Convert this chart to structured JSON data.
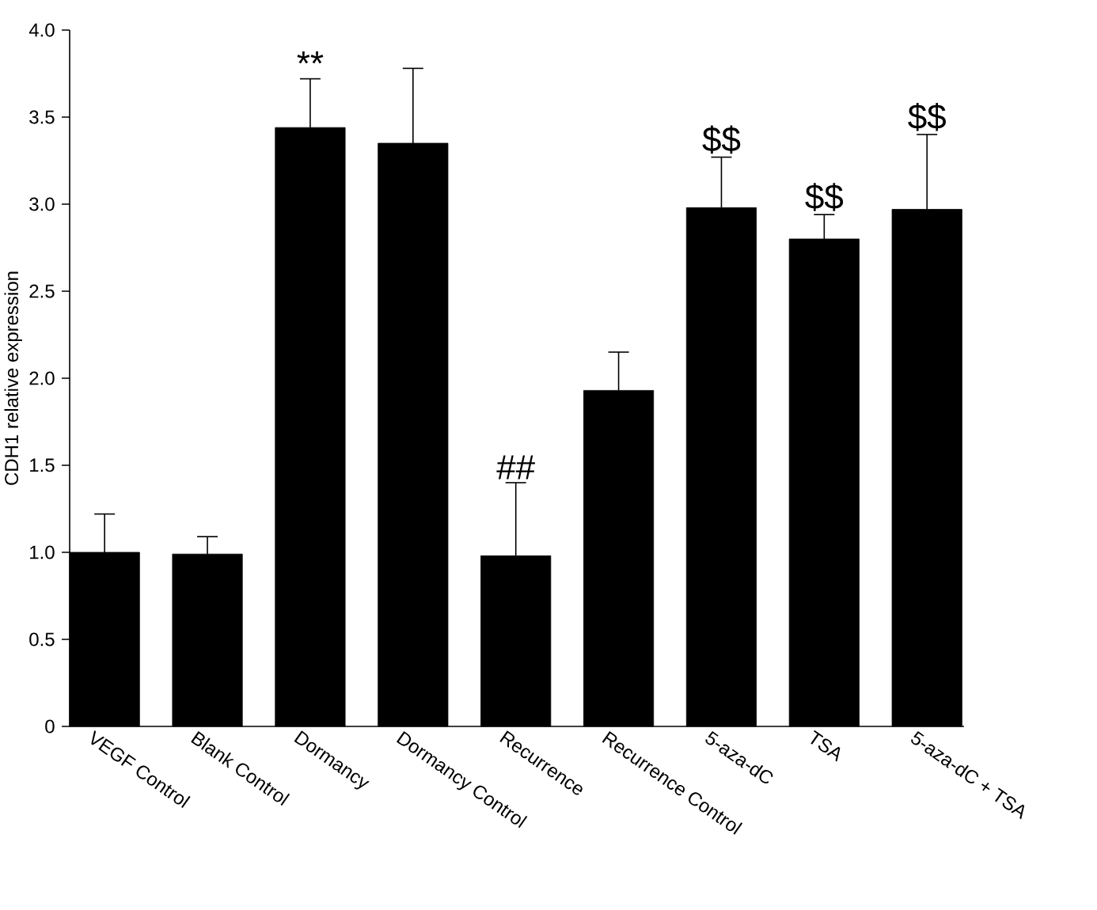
{
  "chart_data": {
    "type": "bar",
    "ylabel": "CDH1 relative expression",
    "categories": [
      "VEGF Control",
      "Blank Control",
      "Dormancy",
      "Dormancy Control",
      "Recurrence",
      "Recurrence Control",
      "5-aza-dC",
      "TSA",
      "5-aza-dC + TSA"
    ],
    "values": [
      1.0,
      0.99,
      3.44,
      3.35,
      0.98,
      1.93,
      2.98,
      2.8,
      2.97
    ],
    "errors": [
      [
        1.0,
        1.22
      ],
      [
        0.99,
        1.09
      ],
      [
        3.44,
        3.72
      ],
      [
        3.35,
        3.78
      ],
      [
        0.98,
        1.4
      ],
      [
        1.93,
        2.15
      ],
      [
        2.98,
        3.27
      ],
      [
        2.8,
        2.94
      ],
      [
        2.97,
        3.4
      ]
    ],
    "color": "#000000",
    "ylim": [
      0,
      4
    ],
    "yticks": [
      0,
      0.5,
      {
        "value": 1,
        "label": "1.0"
      },
      1.5,
      {
        "value": 2,
        "label": "2.0"
      },
      2.5,
      {
        "value": 3,
        "label": "3.0"
      },
      3.5,
      {
        "value": 4,
        "label": "4.0"
      }
    ],
    "grid": false,
    "annotations": [
      {
        "text": "**",
        "x": "Dormancy",
        "y": 3.44
      },
      {
        "text": "##",
        "x": "Recurrence",
        "y": 0.98
      },
      {
        "text": "$$",
        "x": "5-aza-dC",
        "y": 2.98
      },
      {
        "text": "$$",
        "x": "TSA",
        "y": 2.8
      },
      {
        "text": "$$",
        "x": "5-aza-dC + TSA",
        "y": 2.97
      }
    ]
  }
}
